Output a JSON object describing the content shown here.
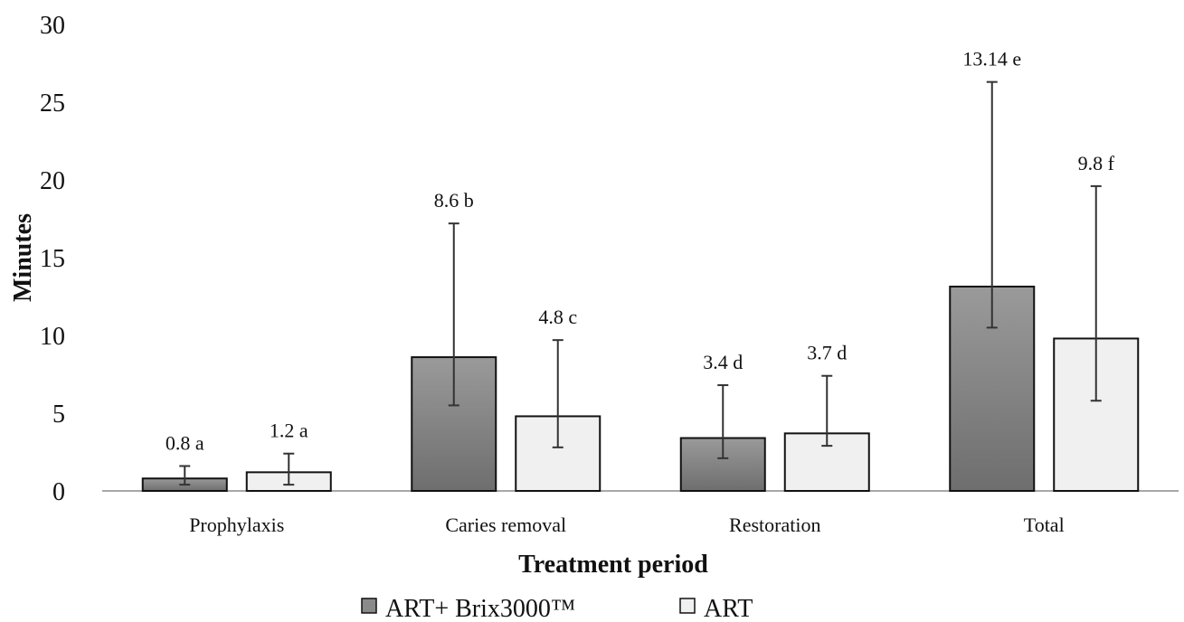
{
  "chart_data": {
    "type": "bar",
    "title": "",
    "xlabel": "Treatment period",
    "ylabel": "Minutes",
    "ylim": [
      0,
      30
    ],
    "yticks": [
      0,
      5,
      10,
      15,
      20,
      25,
      30
    ],
    "categories": [
      "Prophylaxis",
      "Caries removal",
      "Restoration",
      "Total"
    ],
    "series": [
      {
        "name": "ART+ Brix3000™",
        "color": "#8f8f8f",
        "values": [
          0.8,
          8.6,
          3.4,
          13.14
        ],
        "labels": [
          "0.8 a",
          "8.6 b",
          "3.4 d",
          "13.14 e"
        ],
        "error_low": [
          0.4,
          5.5,
          2.1,
          10.5
        ],
        "error_high": [
          1.6,
          17.2,
          6.8,
          26.3
        ]
      },
      {
        "name": "ART",
        "color": "#f0f0f0",
        "values": [
          1.2,
          4.8,
          3.7,
          9.8
        ],
        "labels": [
          "1.2 a",
          "4.8 c",
          "3.7 d",
          "9.8 f"
        ],
        "error_low": [
          0.4,
          2.8,
          2.9,
          5.8
        ],
        "error_high": [
          2.4,
          9.7,
          7.4,
          19.6
        ]
      }
    ],
    "grid": false,
    "legend_position": "bottom"
  }
}
